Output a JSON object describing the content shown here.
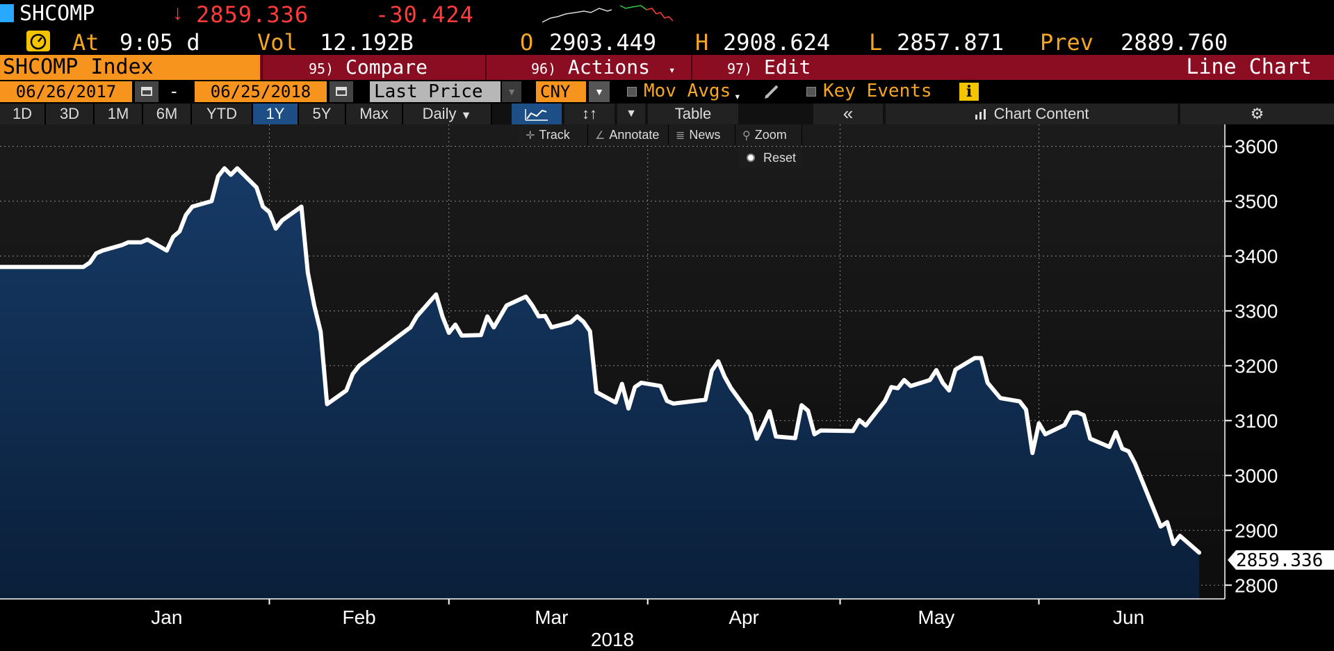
{
  "header": {
    "ticker": "SHCOMP",
    "direction_arrow": "↓",
    "last_price": "2859.336",
    "net_change": "-30.424",
    "time_label": "At",
    "time_value": "9:05 d",
    "volume_label": "Vol",
    "volume_value": "12.192B",
    "open_label": "O",
    "open_value": "2903.449",
    "high_label": "H",
    "high_value": "2908.624",
    "low_label": "L",
    "low_value": "2857.871",
    "prev_label": "Prev",
    "prev_value": "2889.760",
    "clock_icon": "clock-gauge-icon"
  },
  "function_bar": {
    "security": "SHCOMP Index",
    "compare_num": "95)",
    "compare_label": "Compare",
    "actions_num": "96)",
    "actions_label": "Actions",
    "edit_num": "97)",
    "edit_label": "Edit",
    "chart_type": "Line Chart"
  },
  "controls": {
    "start_date": "06/26/2017",
    "date_separator": "-",
    "end_date": "06/25/2018",
    "field": "Last Price",
    "currency": "CNY",
    "mov_avgs_label": "Mov Avgs",
    "key_events_label": "Key Events",
    "info_label": "i"
  },
  "range_tabs": [
    {
      "label": "1D",
      "active": false
    },
    {
      "label": "3D",
      "active": false
    },
    {
      "label": "1M",
      "active": false
    },
    {
      "label": "6M",
      "active": false
    },
    {
      "label": "YTD",
      "active": false
    },
    {
      "label": "1Y",
      "active": true
    },
    {
      "label": "5Y",
      "active": false
    },
    {
      "label": "Max",
      "active": false
    }
  ],
  "frequency": "Daily",
  "frequency_caret": "▼",
  "toolbar": {
    "bars_icon": "↕↑",
    "caret": "▼",
    "table_label": "Table",
    "collapse_label": "«",
    "chart_content_label": "Chart Content",
    "chart_content_icon": "chart-icon",
    "gear_icon": "⚙"
  },
  "chart_tools": {
    "track_label": "Track",
    "annotate_label": "Annotate",
    "news_label": "News",
    "zoom_label": "Zoom",
    "reset_label": "Reset"
  },
  "colors": {
    "accent_orange": "#f7941d",
    "function_red": "#8b0d22",
    "price_red": "#ff3b3b",
    "active_blue": "#1d4f86",
    "area_fill": "#0f2a4d"
  },
  "chart_data": {
    "type": "area",
    "title": "",
    "xlabel": "2018",
    "ylabel": "",
    "ylim": [
      2775,
      3640
    ],
    "y_ticks": [
      2800,
      2900,
      3000,
      3100,
      3200,
      3300,
      3400,
      3500,
      3600
    ],
    "x_labels": [
      {
        "label": "Jan",
        "x": "2018-01-15"
      },
      {
        "label": "Feb",
        "x": "2018-02-14"
      },
      {
        "label": "Mar",
        "x": "2018-03-16"
      },
      {
        "label": "Apr",
        "x": "2018-04-15"
      },
      {
        "label": "May",
        "x": "2018-05-15"
      },
      {
        "label": "Jun",
        "x": "2018-06-14"
      }
    ],
    "x_gridlines": [
      "2018-01-31",
      "2018-02-28",
      "2018-03-31",
      "2018-04-30",
      "2018-05-31"
    ],
    "last_value_label": "2859.336",
    "series": [
      {
        "values": [
          [
            "2018-01-02",
            3380
          ],
          [
            "2018-01-03",
            3388
          ],
          [
            "2018-01-04",
            3405
          ],
          [
            "2018-01-05",
            3410
          ],
          [
            "2018-01-08",
            3420
          ],
          [
            "2018-01-09",
            3425
          ],
          [
            "2018-01-10",
            3425
          ],
          [
            "2018-01-11",
            3425
          ],
          [
            "2018-01-12",
            3430
          ],
          [
            "2018-01-15",
            3410
          ],
          [
            "2018-01-16",
            3435
          ],
          [
            "2018-01-17",
            3445
          ],
          [
            "2018-01-18",
            3475
          ],
          [
            "2018-01-19",
            3490
          ],
          [
            "2018-01-22",
            3500
          ],
          [
            "2018-01-23",
            3545
          ],
          [
            "2018-01-24",
            3560
          ],
          [
            "2018-01-25",
            3548
          ],
          [
            "2018-01-26",
            3560
          ],
          [
            "2018-01-29",
            3525
          ],
          [
            "2018-01-30",
            3490
          ],
          [
            "2018-01-31",
            3480
          ],
          [
            "2018-02-01",
            3450
          ],
          [
            "2018-02-02",
            3465
          ],
          [
            "2018-02-05",
            3490
          ],
          [
            "2018-02-06",
            3370
          ],
          [
            "2018-02-07",
            3310
          ],
          [
            "2018-02-08",
            3262
          ],
          [
            "2018-02-09",
            3130
          ],
          [
            "2018-02-12",
            3155
          ],
          [
            "2018-02-13",
            3185
          ],
          [
            "2018-02-14",
            3200
          ],
          [
            "2018-02-22",
            3270
          ],
          [
            "2018-02-23",
            3290
          ],
          [
            "2018-02-26",
            3330
          ],
          [
            "2018-02-27",
            3290
          ],
          [
            "2018-02-28",
            3260
          ],
          [
            "2018-03-01",
            3275
          ],
          [
            "2018-03-02",
            3255
          ],
          [
            "2018-03-05",
            3256
          ],
          [
            "2018-03-06",
            3290
          ],
          [
            "2018-03-07",
            3270
          ],
          [
            "2018-03-08",
            3290
          ],
          [
            "2018-03-09",
            3310
          ],
          [
            "2018-03-12",
            3326
          ],
          [
            "2018-03-13",
            3310
          ],
          [
            "2018-03-14",
            3290
          ],
          [
            "2018-03-15",
            3291
          ],
          [
            "2018-03-16",
            3270
          ],
          [
            "2018-03-19",
            3279
          ],
          [
            "2018-03-20",
            3290
          ],
          [
            "2018-03-21",
            3280
          ],
          [
            "2018-03-22",
            3263
          ],
          [
            "2018-03-23",
            3152
          ],
          [
            "2018-03-26",
            3133
          ],
          [
            "2018-03-27",
            3167
          ],
          [
            "2018-03-28",
            3122
          ],
          [
            "2018-03-29",
            3161
          ],
          [
            "2018-03-30",
            3169
          ],
          [
            "2018-04-02",
            3163
          ],
          [
            "2018-04-03",
            3136
          ],
          [
            "2018-04-04",
            3131
          ],
          [
            "2018-04-09",
            3138
          ],
          [
            "2018-04-10",
            3191
          ],
          [
            "2018-04-11",
            3208
          ],
          [
            "2018-04-12",
            3180
          ],
          [
            "2018-04-13",
            3159
          ],
          [
            "2018-04-16",
            3111
          ],
          [
            "2018-04-17",
            3067
          ],
          [
            "2018-04-18",
            3091
          ],
          [
            "2018-04-19",
            3117
          ],
          [
            "2018-04-20",
            3071
          ],
          [
            "2018-04-23",
            3068
          ],
          [
            "2018-04-24",
            3128
          ],
          [
            "2018-04-25",
            3118
          ],
          [
            "2018-04-26",
            3075
          ],
          [
            "2018-04-27",
            3082
          ],
          [
            "2018-05-02",
            3081
          ],
          [
            "2018-05-03",
            3101
          ],
          [
            "2018-05-04",
            3091
          ],
          [
            "2018-05-07",
            3136
          ],
          [
            "2018-05-08",
            3161
          ],
          [
            "2018-05-09",
            3159
          ],
          [
            "2018-05-10",
            3174
          ],
          [
            "2018-05-11",
            3163
          ],
          [
            "2018-05-14",
            3174
          ],
          [
            "2018-05-15",
            3192
          ],
          [
            "2018-05-16",
            3169
          ],
          [
            "2018-05-17",
            3155
          ],
          [
            "2018-05-18",
            3193
          ],
          [
            "2018-05-21",
            3214
          ],
          [
            "2018-05-22",
            3214
          ],
          [
            "2018-05-23",
            3169
          ],
          [
            "2018-05-24",
            3155
          ],
          [
            "2018-05-25",
            3141
          ],
          [
            "2018-05-28",
            3135
          ],
          [
            "2018-05-29",
            3120
          ],
          [
            "2018-05-30",
            3041
          ],
          [
            "2018-05-31",
            3095
          ],
          [
            "2018-06-01",
            3075
          ],
          [
            "2018-06-04",
            3092
          ],
          [
            "2018-06-05",
            3114
          ],
          [
            "2018-06-06",
            3115
          ],
          [
            "2018-06-07",
            3110
          ],
          [
            "2018-06-08",
            3067
          ],
          [
            "2018-06-11",
            3052
          ],
          [
            "2018-06-12",
            3079
          ],
          [
            "2018-06-13",
            3049
          ],
          [
            "2018-06-14",
            3044
          ],
          [
            "2018-06-15",
            3022
          ],
          [
            "2018-06-19",
            2907
          ],
          [
            "2018-06-20",
            2915
          ],
          [
            "2018-06-21",
            2875
          ],
          [
            "2018-06-22",
            2890
          ],
          [
            "2018-06-25",
            2859.336
          ]
        ]
      }
    ]
  }
}
